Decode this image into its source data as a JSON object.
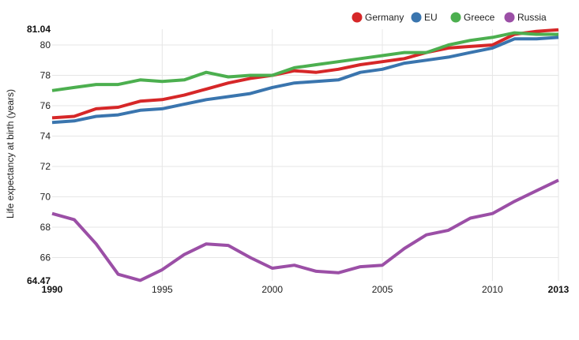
{
  "chart_data": {
    "type": "line",
    "xlabel": "",
    "ylabel": "Life expectancy at birth (years)",
    "xlim": [
      1990,
      2013
    ],
    "ylim": [
      64.47,
      81.04
    ],
    "y_extent_labels": [
      "81.04",
      "64.47"
    ],
    "x_ticks": [
      1990,
      1995,
      2000,
      2005,
      2010,
      2013
    ],
    "y_ticks": [
      66,
      68,
      70,
      72,
      74,
      76,
      78,
      80
    ],
    "grid": true,
    "legend_position": "top-right",
    "x": [
      1990,
      1991,
      1992,
      1993,
      1994,
      1995,
      1996,
      1997,
      1998,
      1999,
      2000,
      2001,
      2002,
      2003,
      2004,
      2005,
      2006,
      2007,
      2008,
      2009,
      2010,
      2011,
      2012,
      2013
    ],
    "series": [
      {
        "name": "Germany",
        "color": "#d62728",
        "values": [
          75.2,
          75.3,
          75.8,
          75.9,
          76.3,
          76.4,
          76.7,
          77.1,
          77.5,
          77.8,
          78.0,
          78.3,
          78.2,
          78.4,
          78.7,
          78.9,
          79.1,
          79.5,
          79.8,
          79.9,
          80.0,
          80.7,
          80.9,
          81.0
        ]
      },
      {
        "name": "EU",
        "color": "#3a75ae",
        "values": [
          74.9,
          75.0,
          75.3,
          75.4,
          75.7,
          75.8,
          76.1,
          76.4,
          76.6,
          76.8,
          77.2,
          77.5,
          77.6,
          77.7,
          78.2,
          78.4,
          78.8,
          79.0,
          79.2,
          79.5,
          79.8,
          80.4,
          80.4,
          80.5
        ]
      },
      {
        "name": "Greece",
        "color": "#4caf4f",
        "values": [
          77.0,
          77.2,
          77.4,
          77.4,
          77.7,
          77.6,
          77.7,
          78.2,
          77.9,
          78.0,
          78.0,
          78.5,
          78.7,
          78.9,
          79.1,
          79.3,
          79.5,
          79.5,
          80.0,
          80.3,
          80.5,
          80.8,
          80.7,
          80.7
        ]
      },
      {
        "name": "Russia",
        "color": "#9b4fa6",
        "values": [
          68.9,
          68.5,
          66.9,
          64.9,
          64.5,
          65.2,
          66.2,
          66.9,
          66.8,
          66.0,
          65.3,
          65.5,
          65.1,
          65.0,
          65.4,
          65.5,
          66.6,
          67.5,
          67.8,
          68.6,
          68.9,
          69.7,
          70.4,
          71.1
        ]
      }
    ]
  }
}
